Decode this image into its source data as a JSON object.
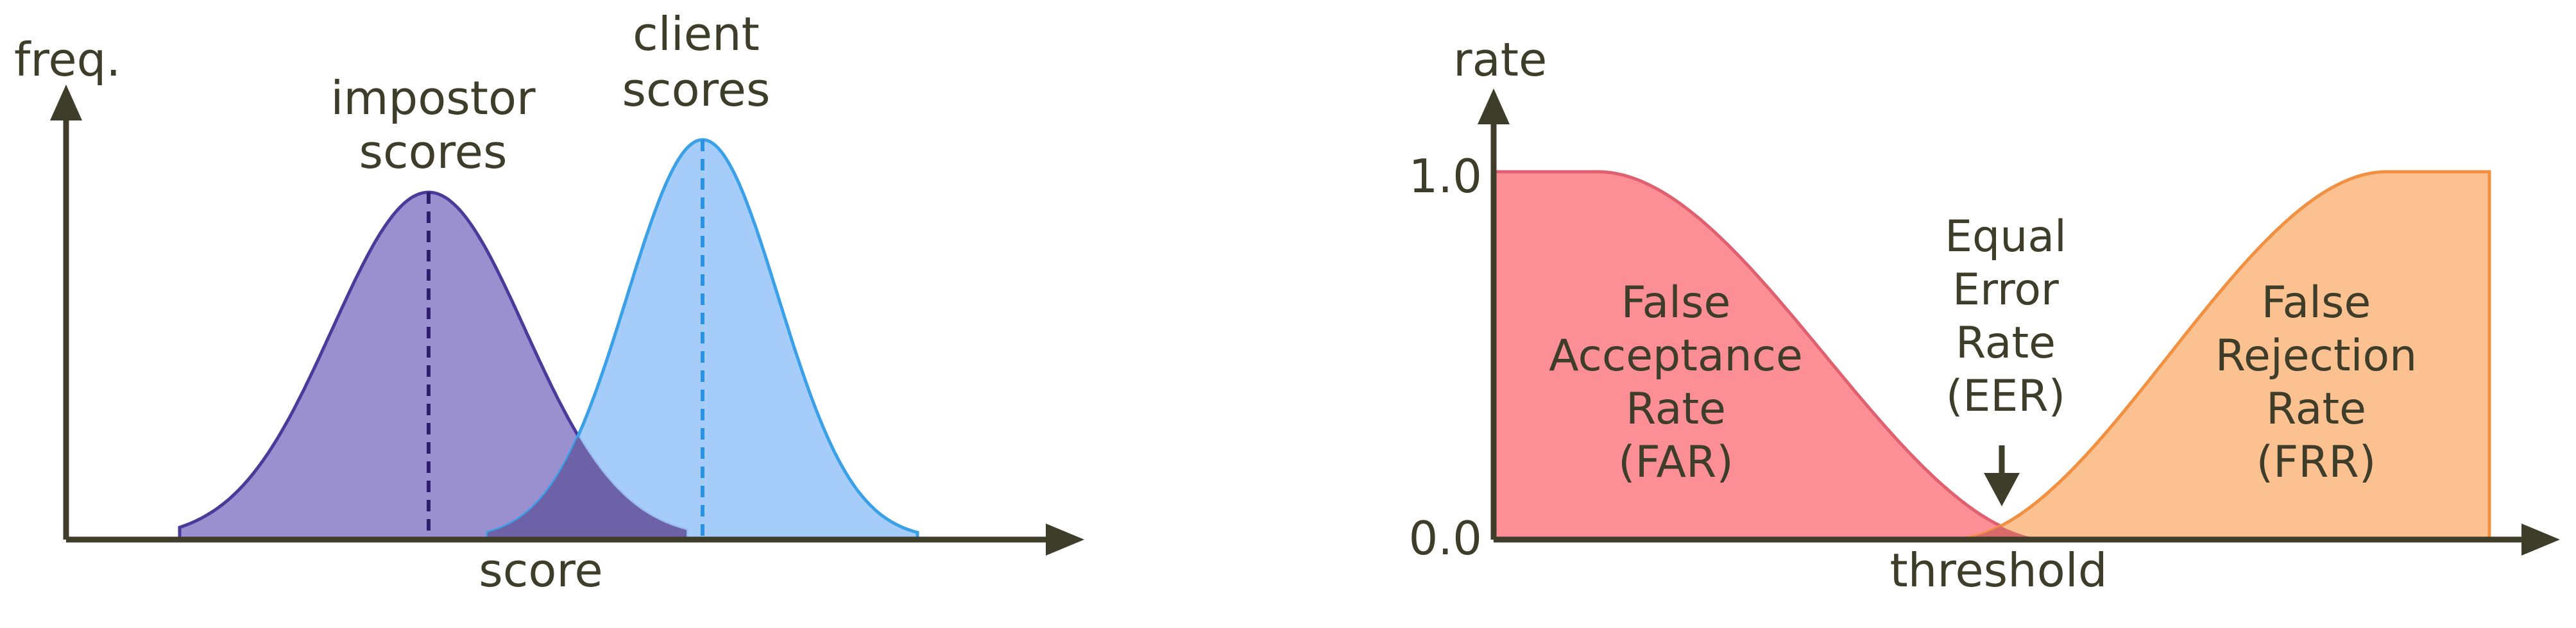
{
  "left_panel": {
    "y_axis_label": "freq.",
    "x_axis_label": "score",
    "impostor_label": [
      "impostor",
      "scores"
    ],
    "client_label": [
      "client",
      "scores"
    ],
    "colors": {
      "impostor_fill": "#9a90d0",
      "impostor_stroke": "#4a3a9a",
      "client_fill": "#9ec8f8",
      "client_stroke": "#3aa0e8",
      "overlap_fill": "#6d61a8",
      "axis": "#3d3d2a"
    }
  },
  "right_panel": {
    "y_axis_label": "rate",
    "x_axis_label": "threshold",
    "y_tick_top": "1.0",
    "y_tick_bottom": "0.0",
    "far_label": [
      "False",
      "Acceptance",
      "Rate",
      "(FAR)"
    ],
    "frr_label": [
      "False",
      "Rejection",
      "Rate",
      "(FRR)"
    ],
    "eer_label": [
      "Equal",
      "Error",
      "Rate",
      "(EER)"
    ],
    "colors": {
      "far_fill": "#fb8f95",
      "far_stroke": "#e06070",
      "frr_fill": "#fcc190",
      "frr_stroke": "#f09040",
      "overlap_fill": "#d86a6a",
      "axis": "#3d3d2a"
    }
  }
}
